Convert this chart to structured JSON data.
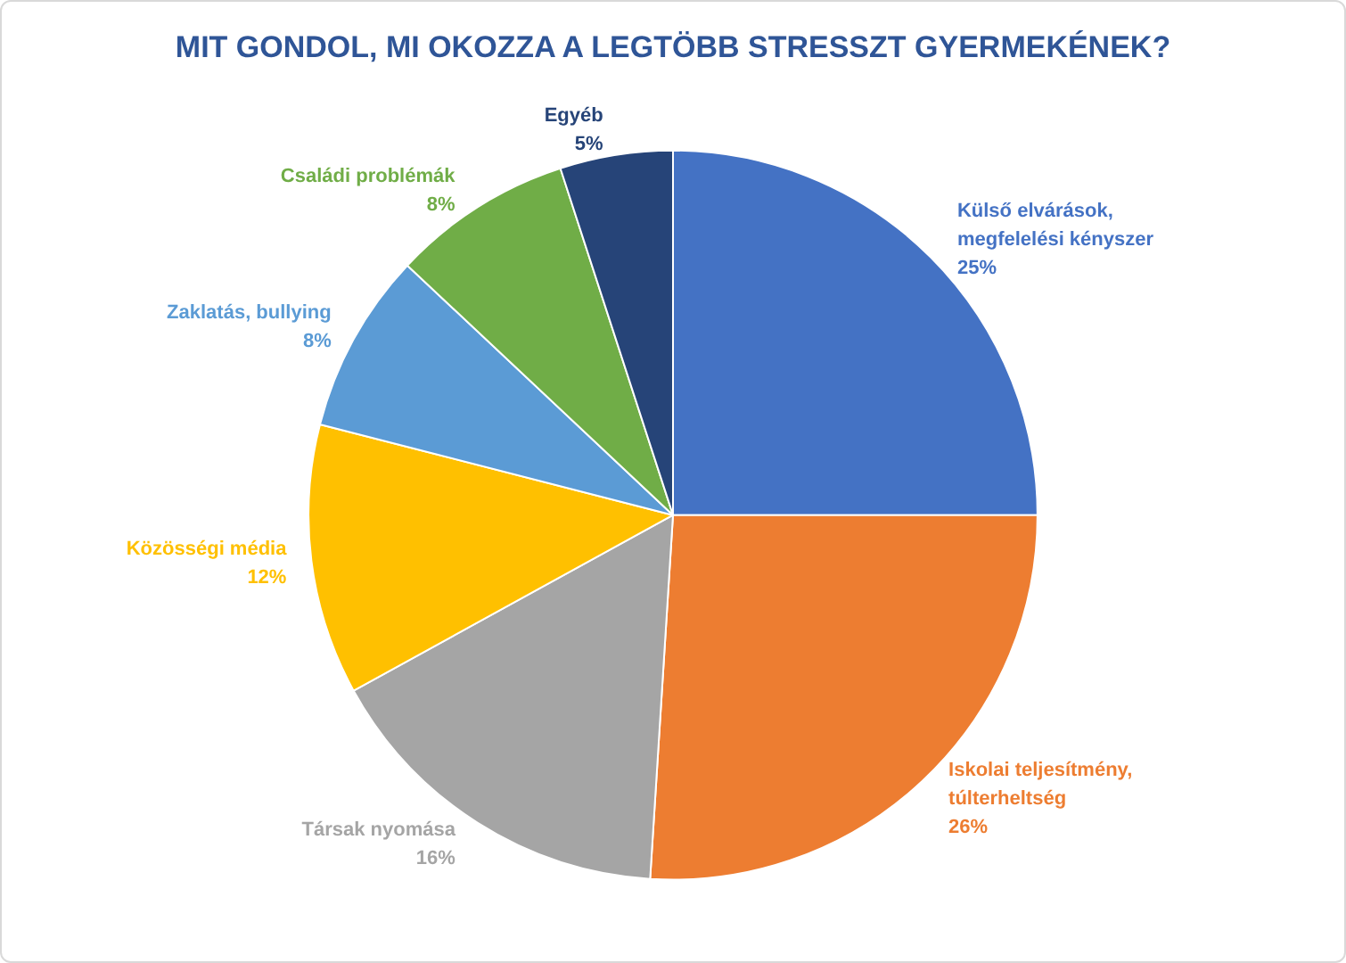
{
  "chart_data": {
    "type": "pie",
    "title": "MIT GONDOL, MI OKOZZA A LEGTÖBB STRESSZT GYERMEKÉNEK?",
    "categories": [
      "Külső elvárások, megfelelési kényszer",
      "Iskolai teljesítmény, túlterheltség",
      "Társak nyomása",
      "Közösségi média",
      "Zaklatás, bullying",
      "Családi problémák",
      "Egyéb"
    ],
    "values": [
      25,
      26,
      16,
      12,
      8,
      8,
      5
    ],
    "value_labels": [
      "25%",
      "26%",
      "16%",
      "12%",
      "8%",
      "8%",
      "5%"
    ],
    "colors": [
      "#4472c4",
      "#ed7d31",
      "#a5a5a5",
      "#ffc000",
      "#5b9bd5",
      "#70ad47",
      "#264478"
    ],
    "legend": false
  }
}
